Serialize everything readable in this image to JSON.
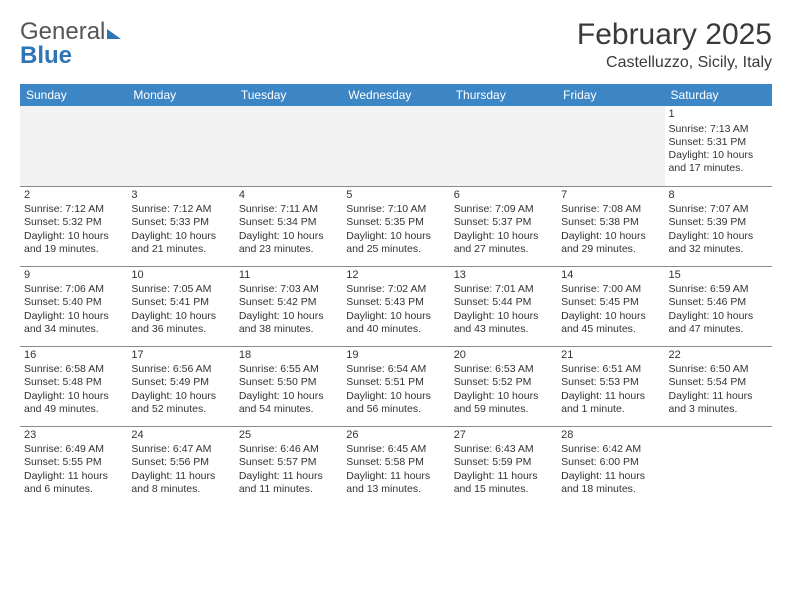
{
  "logo": {
    "part1": "General",
    "part2": "Blue"
  },
  "header": {
    "title": "February 2025",
    "location": "Castelluzzo, Sicily, Italy"
  },
  "colors": {
    "header_bg": "#3d86c6",
    "header_text": "#ffffff",
    "border": "#8a8a8a",
    "logo_blue": "#2e75b6"
  },
  "daysOfWeek": [
    "Sunday",
    "Monday",
    "Tuesday",
    "Wednesday",
    "Thursday",
    "Friday",
    "Saturday"
  ],
  "calendar": {
    "type": "table",
    "startDay": 6,
    "daysInMonth": 28,
    "days": {
      "1": {
        "sunrise": "7:13 AM",
        "sunset": "5:31 PM",
        "daylight": "10 hours and 17 minutes."
      },
      "2": {
        "sunrise": "7:12 AM",
        "sunset": "5:32 PM",
        "daylight": "10 hours and 19 minutes."
      },
      "3": {
        "sunrise": "7:12 AM",
        "sunset": "5:33 PM",
        "daylight": "10 hours and 21 minutes."
      },
      "4": {
        "sunrise": "7:11 AM",
        "sunset": "5:34 PM",
        "daylight": "10 hours and 23 minutes."
      },
      "5": {
        "sunrise": "7:10 AM",
        "sunset": "5:35 PM",
        "daylight": "10 hours and 25 minutes."
      },
      "6": {
        "sunrise": "7:09 AM",
        "sunset": "5:37 PM",
        "daylight": "10 hours and 27 minutes."
      },
      "7": {
        "sunrise": "7:08 AM",
        "sunset": "5:38 PM",
        "daylight": "10 hours and 29 minutes."
      },
      "8": {
        "sunrise": "7:07 AM",
        "sunset": "5:39 PM",
        "daylight": "10 hours and 32 minutes."
      },
      "9": {
        "sunrise": "7:06 AM",
        "sunset": "5:40 PM",
        "daylight": "10 hours and 34 minutes."
      },
      "10": {
        "sunrise": "7:05 AM",
        "sunset": "5:41 PM",
        "daylight": "10 hours and 36 minutes."
      },
      "11": {
        "sunrise": "7:03 AM",
        "sunset": "5:42 PM",
        "daylight": "10 hours and 38 minutes."
      },
      "12": {
        "sunrise": "7:02 AM",
        "sunset": "5:43 PM",
        "daylight": "10 hours and 40 minutes."
      },
      "13": {
        "sunrise": "7:01 AM",
        "sunset": "5:44 PM",
        "daylight": "10 hours and 43 minutes."
      },
      "14": {
        "sunrise": "7:00 AM",
        "sunset": "5:45 PM",
        "daylight": "10 hours and 45 minutes."
      },
      "15": {
        "sunrise": "6:59 AM",
        "sunset": "5:46 PM",
        "daylight": "10 hours and 47 minutes."
      },
      "16": {
        "sunrise": "6:58 AM",
        "sunset": "5:48 PM",
        "daylight": "10 hours and 49 minutes."
      },
      "17": {
        "sunrise": "6:56 AM",
        "sunset": "5:49 PM",
        "daylight": "10 hours and 52 minutes."
      },
      "18": {
        "sunrise": "6:55 AM",
        "sunset": "5:50 PM",
        "daylight": "10 hours and 54 minutes."
      },
      "19": {
        "sunrise": "6:54 AM",
        "sunset": "5:51 PM",
        "daylight": "10 hours and 56 minutes."
      },
      "20": {
        "sunrise": "6:53 AM",
        "sunset": "5:52 PM",
        "daylight": "10 hours and 59 minutes."
      },
      "21": {
        "sunrise": "6:51 AM",
        "sunset": "5:53 PM",
        "daylight": "11 hours and 1 minute."
      },
      "22": {
        "sunrise": "6:50 AM",
        "sunset": "5:54 PM",
        "daylight": "11 hours and 3 minutes."
      },
      "23": {
        "sunrise": "6:49 AM",
        "sunset": "5:55 PM",
        "daylight": "11 hours and 6 minutes."
      },
      "24": {
        "sunrise": "6:47 AM",
        "sunset": "5:56 PM",
        "daylight": "11 hours and 8 minutes."
      },
      "25": {
        "sunrise": "6:46 AM",
        "sunset": "5:57 PM",
        "daylight": "11 hours and 11 minutes."
      },
      "26": {
        "sunrise": "6:45 AM",
        "sunset": "5:58 PM",
        "daylight": "11 hours and 13 minutes."
      },
      "27": {
        "sunrise": "6:43 AM",
        "sunset": "5:59 PM",
        "daylight": "11 hours and 15 minutes."
      },
      "28": {
        "sunrise": "6:42 AM",
        "sunset": "6:00 PM",
        "daylight": "11 hours and 18 minutes."
      }
    },
    "labels": {
      "sunrise": "Sunrise:",
      "sunset": "Sunset:",
      "daylight": "Daylight:"
    }
  }
}
